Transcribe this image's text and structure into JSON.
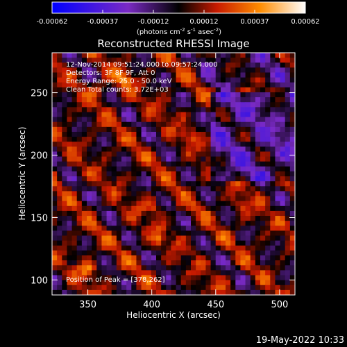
{
  "chart_data": {
    "type": "heatmap",
    "title": "Reconstructed RHESSI Image",
    "xlabel": "Heliocentric X (arcsec)",
    "ylabel": "Heliocentric Y (arcsec)",
    "xlim": [
      322,
      512
    ],
    "ylim": [
      88,
      282
    ],
    "x_ticks": [
      350,
      400,
      450,
      500
    ],
    "y_ticks": [
      100,
      150,
      200,
      250
    ],
    "colorbar": {
      "ticks": [
        "-0.00062",
        "-0.00037",
        "-0.00012",
        "0.00012",
        "0.00037",
        "0.00062"
      ],
      "range": [
        -0.00062,
        0.00062
      ],
      "unit": "(photons cm",
      "unit_parts": [
        "(photons cm",
        "-2",
        " s",
        "-1",
        " asec",
        "-2",
        ")"
      ],
      "colors": [
        "#0000ff",
        "#7a2ac4",
        "#000000",
        "#c81a00",
        "#ff8c00",
        "#ffffff"
      ]
    },
    "annotations": [
      "12-Nov-2014 09:51:24.000 to 09:57:24.000",
      "Detectors: 3F 8F 9F, Att 0",
      "Energy Range: 25.0 - 50.0 keV",
      "Clean    Total counts: 3.72E+03"
    ],
    "peak_label": "Position of Peak = [378,262]",
    "peak": [
      378,
      262
    ],
    "bright_spots": [
      {
        "x": 378,
        "y": 262,
        "value": 0.00062
      },
      {
        "x": 350,
        "y": 108,
        "value": 0.00052
      },
      {
        "x": 360,
        "y": 253,
        "value": 0.00045
      },
      {
        "x": 400,
        "y": 160,
        "value": 0.0004
      },
      {
        "x": 470,
        "y": 160,
        "value": 0.00038
      },
      {
        "x": 430,
        "y": 215,
        "value": 0.00036
      },
      {
        "x": 405,
        "y": 133,
        "value": 0.00035
      }
    ],
    "grid": false
  },
  "footer": {
    "timestamp": "19-May-2022 10:33"
  }
}
